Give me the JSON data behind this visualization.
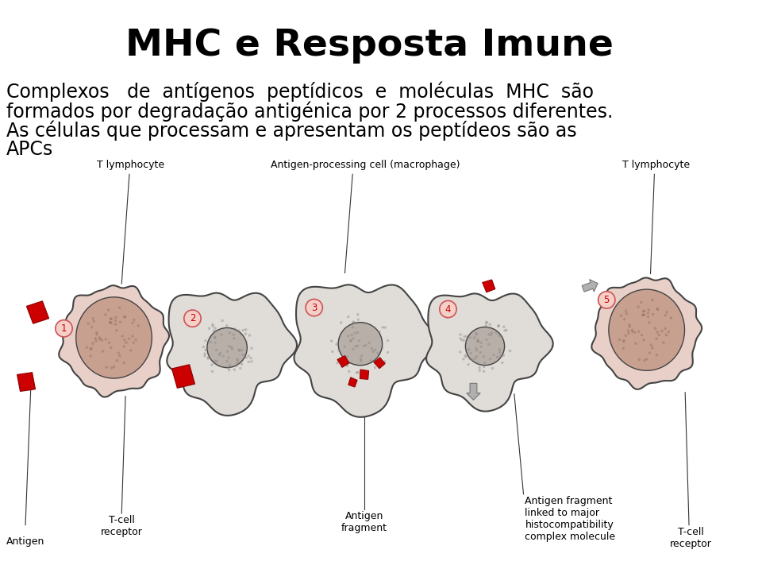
{
  "title": "MHC e Resposta Imune",
  "title_fontsize": 34,
  "title_fontweight": "bold",
  "title_color": "#000000",
  "body_text": "Complexos   de  antígenos  peptídicos  e  moléculas  MHC  são\nformados por degradação antigénica por 2 processos diferentes.\nAs células que processam e apresentam os peptídeos são as\nAPCs",
  "body_fontsize": 17,
  "body_color": "#000000",
  "background_color": "#ffffff",
  "label_top_1": "T lymphocyte",
  "label_top_2": "Antigen-processing cell (macrophage)",
  "label_top_3": "T lymphocyte",
  "label_antigen": "Antigen",
  "label_tcell1": "T-cell\nreceptor",
  "label_afrag": "Antigen\nfragment",
  "label_afrag_mhc": "Antigen fragment\nlinked to major\nhistocompatibility\ncomplex molecule",
  "label_tcell2": "T-cell\nreceptor",
  "step_numbers": [
    "1",
    "2",
    "3",
    "4",
    "5"
  ],
  "t_cell_outer_color": "#e8d0c8",
  "t_cell_nucleus_color": "#c8a090",
  "macro_outer_color": "#e0dcd8",
  "macro_nucleus_color": "#b8b0a8",
  "antigen_color": "#cc0000",
  "antigen_dark": "#880000",
  "step_fill": "#f5d0c8",
  "step_edge": "#cc5555",
  "label_fontsize": 8,
  "cell_edge": "#444444",
  "line_color": "#333333"
}
